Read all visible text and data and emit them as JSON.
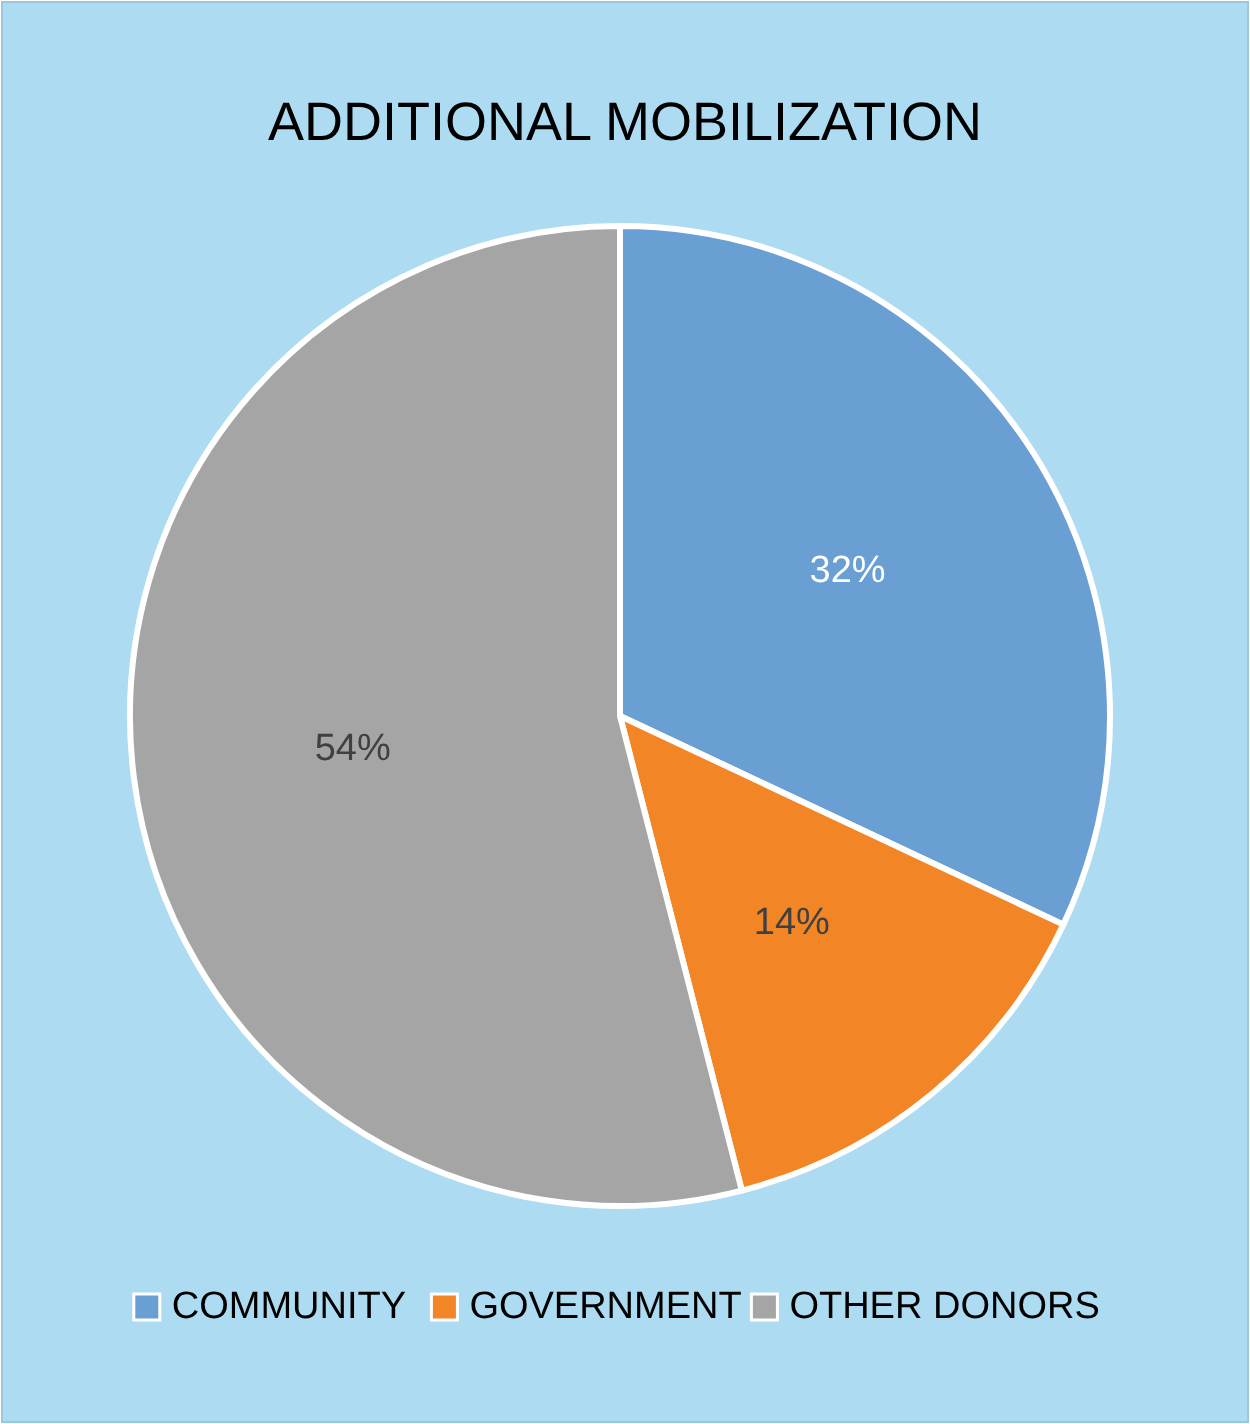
{
  "chart_data": {
    "type": "pie",
    "title": "ADDITIONAL MOBILIZATION",
    "categories": [
      "COMMUNITY",
      "GOVERNMENT",
      "OTHER DONORS"
    ],
    "values": [
      32,
      14,
      54
    ],
    "colors": [
      "#6a9fd4",
      "#f28526",
      "#a5a5a5"
    ],
    "value_labels": [
      "32%",
      "14%",
      "54%"
    ],
    "legend": "bottom"
  }
}
